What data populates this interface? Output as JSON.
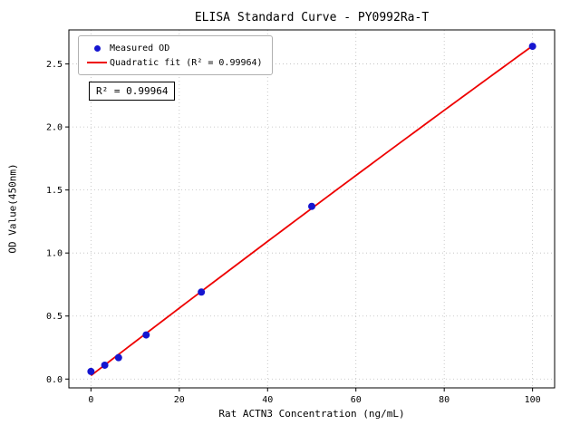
{
  "chart_data": {
    "type": "scatter",
    "title": "ELISA Standard Curve - PY0992Ra-T",
    "xlabel": "Rat ACTN3 Concentration (ng/mL)",
    "ylabel": "OD Value(450nm)",
    "xlim": [
      -5,
      105
    ],
    "ylim": [
      -0.07,
      2.77
    ],
    "grid": true,
    "legend_position": "upper left",
    "xticks": [
      {
        "v": 0,
        "label": "0"
      },
      {
        "v": 20,
        "label": "20"
      },
      {
        "v": 40,
        "label": "40"
      },
      {
        "v": 60,
        "label": "60"
      },
      {
        "v": 80,
        "label": "80"
      },
      {
        "v": 100,
        "label": "100"
      }
    ],
    "yticks": [
      {
        "v": 0.0,
        "label": "0.0"
      },
      {
        "v": 0.5,
        "label": "0.5"
      },
      {
        "v": 1.0,
        "label": "1.0"
      },
      {
        "v": 1.5,
        "label": "1.5"
      },
      {
        "v": 2.0,
        "label": "2.0"
      },
      {
        "v": 2.5,
        "label": "2.5"
      }
    ],
    "series": [
      {
        "name": "Measured OD",
        "type": "scatter",
        "x": [
          0,
          3.125,
          6.25,
          12.5,
          25,
          50,
          100
        ],
        "y": [
          0.06,
          0.11,
          0.17,
          0.35,
          0.69,
          1.37,
          2.64
        ]
      },
      {
        "name": "Quadratic fit",
        "type": "quadratic-fit-line",
        "fit_of": "Measured OD"
      }
    ],
    "legend": [
      {
        "label": "Measured OD",
        "marker": "dot"
      },
      {
        "label": "Quadratic fit (R² = 0.99964)",
        "marker": "line"
      }
    ],
    "annotation": "R² = 0.99964",
    "colors": {
      "point": "#1515d0",
      "fit_line": "#ee0000",
      "grid": "#bdbdbd",
      "axis": "#000000"
    }
  }
}
